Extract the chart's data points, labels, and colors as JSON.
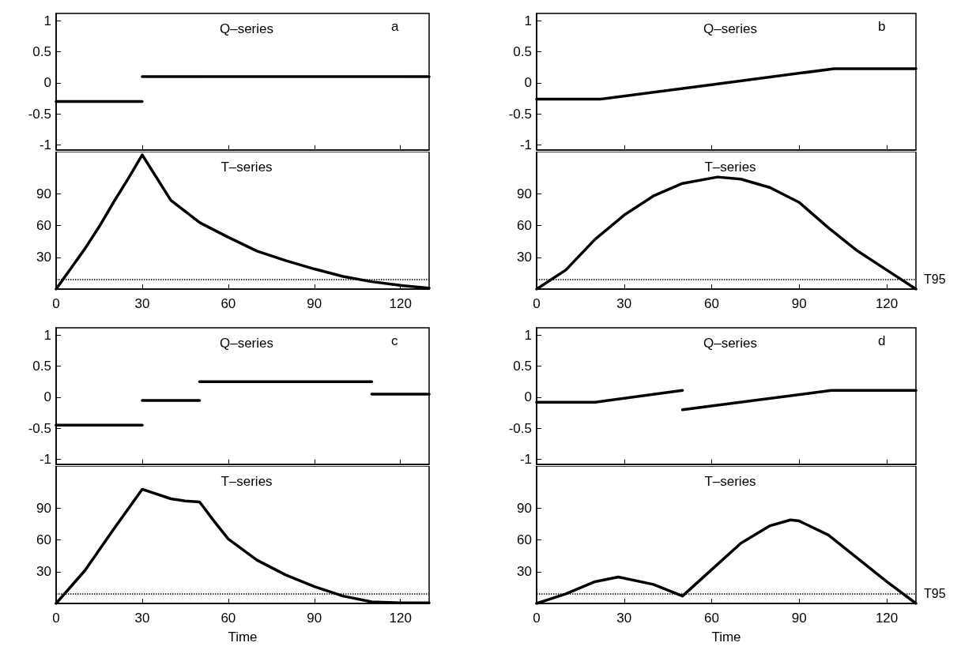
{
  "chart_data": [
    {
      "type": "line",
      "title": "Q–series",
      "annotations": [
        "a"
      ],
      "series": [
        {
          "color": "#000000",
          "x": [
            0,
            30
          ],
          "values": [
            -0.3,
            -0.3
          ]
        },
        {
          "color": "#000000",
          "x": [
            30,
            130
          ],
          "values": [
            0.1,
            0.1
          ]
        }
      ],
      "xlim": [
        0,
        130
      ],
      "xticks": [
        0,
        30,
        60,
        90,
        120
      ],
      "ylim": [
        -1.08,
        1.12
      ],
      "yticks": [
        -1,
        -0.5,
        0,
        0.5,
        1
      ],
      "tick_labels": "y",
      "line_style": "solid"
    },
    {
      "type": "line",
      "title": "T–series",
      "x": [
        0,
        5,
        10,
        15,
        20,
        25,
        30,
        40,
        50,
        60,
        70,
        80,
        90,
        100,
        110,
        120,
        130
      ],
      "series": [
        {
          "color": "#000000",
          "values": [
            0,
            19,
            38,
            59,
            82,
            104,
            127,
            84,
            63,
            49,
            36,
            27,
            19,
            12,
            7,
            3.5,
            1
          ]
        }
      ],
      "xlim": [
        0,
        130
      ],
      "xticks": [
        0,
        30,
        60,
        90,
        120
      ],
      "ylim": [
        0,
        130
      ],
      "yticks": [
        30,
        60,
        90
      ],
      "ref_lines": [
        {
          "axis": "y",
          "value": 9,
          "color": "#000000",
          "line_style": "dotted"
        }
      ],
      "line_style": "solid"
    },
    {
      "type": "line",
      "title": "Q–series",
      "annotations": [
        "b"
      ],
      "x": [
        0,
        22,
        60,
        102,
        130
      ],
      "series": [
        {
          "color": "#000000",
          "values": [
            -0.26,
            -0.26,
            -0.03,
            0.23,
            0.23
          ]
        }
      ],
      "xlim": [
        0,
        130
      ],
      "xticks": [
        0,
        30,
        60,
        90,
        120
      ],
      "ylim": [
        -1.08,
        1.12
      ],
      "yticks": [
        -1,
        -0.5,
        0,
        0.5,
        1
      ],
      "tick_labels": "y",
      "line_style": "solid"
    },
    {
      "type": "line",
      "title": "T–series",
      "x": [
        0,
        10,
        20,
        30,
        40,
        50,
        62,
        70,
        80,
        90,
        100,
        110,
        120,
        130
      ],
      "series": [
        {
          "color": "#000000",
          "values": [
            0,
            18,
            47,
            70,
            88,
            100,
            106,
            104,
            96,
            82,
            58,
            36,
            18,
            0
          ]
        }
      ],
      "xlim": [
        0,
        130
      ],
      "xticks": [
        0,
        30,
        60,
        90,
        120
      ],
      "ylim": [
        0,
        130
      ],
      "yticks": [
        30,
        60,
        90
      ],
      "ref_lines": [
        {
          "axis": "y",
          "value": 9,
          "label": "T95",
          "color": "#000000",
          "line_style": "dotted"
        }
      ],
      "line_style": "solid"
    },
    {
      "type": "line",
      "title": "Q–series",
      "annotations": [
        "c"
      ],
      "series": [
        {
          "color": "#000000",
          "x": [
            0,
            30
          ],
          "values": [
            -0.45,
            -0.45
          ]
        },
        {
          "color": "#000000",
          "x": [
            30,
            50
          ],
          "values": [
            -0.05,
            -0.05
          ]
        },
        {
          "color": "#000000",
          "x": [
            50,
            110
          ],
          "values": [
            0.25,
            0.25
          ]
        },
        {
          "color": "#000000",
          "x": [
            110,
            130
          ],
          "values": [
            0.05,
            0.05
          ]
        }
      ],
      "xlim": [
        0,
        130
      ],
      "xticks": [
        0,
        30,
        60,
        90,
        120
      ],
      "ylim": [
        -1.08,
        1.12
      ],
      "yticks": [
        -1,
        -0.5,
        0,
        0.5,
        1
      ],
      "tick_labels": "y",
      "line_style": "solid"
    },
    {
      "type": "line",
      "title": "T–series",
      "xlabel": "Time",
      "x": [
        0,
        10,
        20,
        30,
        40,
        45,
        50,
        55,
        60,
        70,
        80,
        90,
        100,
        110,
        120,
        130
      ],
      "series": [
        {
          "color": "#000000",
          "values": [
            0,
            31,
            70,
            108,
            99,
            97,
            96,
            78,
            61,
            41,
            27,
            16,
            7,
            1.5,
            0.5,
            0.5
          ]
        }
      ],
      "xlim": [
        0,
        130
      ],
      "xticks": [
        0,
        30,
        60,
        90,
        120
      ],
      "ylim": [
        0,
        130
      ],
      "yticks": [
        30,
        60,
        90
      ],
      "ref_lines": [
        {
          "axis": "y",
          "value": 9,
          "color": "#000000",
          "line_style": "dotted"
        }
      ],
      "line_style": "solid"
    },
    {
      "type": "line",
      "title": "Q–series",
      "annotations": [
        "d"
      ],
      "series": [
        {
          "color": "#000000",
          "x": [
            0,
            20,
            50
          ],
          "values": [
            -0.08,
            -0.08,
            0.11
          ]
        },
        {
          "color": "#000000",
          "x": [
            50,
            101,
            130
          ],
          "values": [
            -0.2,
            0.11,
            0.11
          ]
        }
      ],
      "xlim": [
        0,
        130
      ],
      "xticks": [
        0,
        30,
        60,
        90,
        120
      ],
      "ylim": [
        -1.08,
        1.12
      ],
      "yticks": [
        -1,
        -0.5,
        0,
        0.5,
        1
      ],
      "tick_labels": "y",
      "line_style": "solid"
    },
    {
      "type": "line",
      "title": "T–series",
      "xlabel": "Time",
      "x": [
        0,
        10,
        20,
        28,
        40,
        50,
        60,
        70,
        80,
        87,
        90,
        100,
        110,
        120,
        130
      ],
      "series": [
        {
          "color": "#000000",
          "values": [
            0,
            9,
            20.6,
            25,
            18,
            7,
            32,
            57,
            73.5,
            79,
            78,
            64.7,
            42.6,
            20.6,
            0
          ]
        }
      ],
      "xlim": [
        0,
        130
      ],
      "xticks": [
        0,
        30,
        60,
        90,
        120
      ],
      "ylim": [
        0,
        130
      ],
      "yticks": [
        30,
        60,
        90
      ],
      "ref_lines": [
        {
          "axis": "y",
          "value": 9,
          "label": "T95",
          "color": "#000000",
          "line_style": "dotted"
        }
      ],
      "line_style": "solid"
    }
  ]
}
